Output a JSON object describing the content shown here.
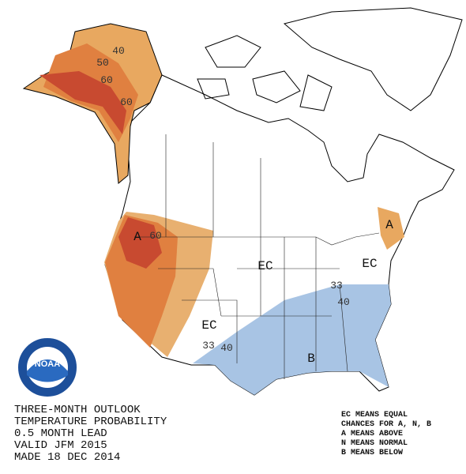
{
  "map": {
    "labels": [
      "40",
      "50",
      "60",
      "60",
      "A",
      "60",
      "EC",
      "EC",
      "A",
      "33",
      "40",
      "EC",
      "33",
      "40",
      "B"
    ]
  },
  "logo": {
    "text": "NOAA"
  },
  "title_block": {
    "lines": [
      "THREE-MONTH OUTLOOK",
      "TEMPERATURE PROBABILITY",
      "0.5 MONTH LEAD",
      "VALID JFM 2015",
      "MADE 18 DEC 2014"
    ]
  },
  "legend": {
    "lines": [
      "EC MEANS EQUAL",
      "CHANCES FOR A, N, B",
      "A MEANS ABOVE",
      "N MEANS NORMAL",
      "B MEANS BELOW"
    ]
  }
}
